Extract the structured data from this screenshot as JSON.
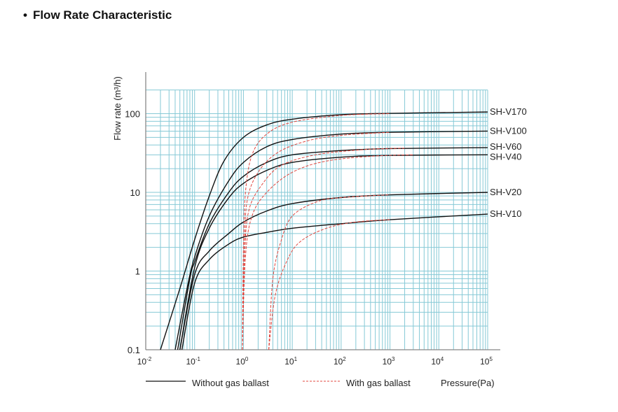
{
  "header": {
    "bullet": "•",
    "title": "Flow Rate Characteristic"
  },
  "chart_data": {
    "type": "line",
    "title": "Flow Rate Characteristic",
    "xlabel": "Pressure(Pa)",
    "ylabel": "Flow rate (m³/h)",
    "xscale": "log",
    "yscale": "log",
    "xlim": [
      0.01,
      100000
    ],
    "ylim": [
      0.1,
      200
    ],
    "x_ticks": [
      {
        "base": "10",
        "exp": "-2",
        "v": 0.01
      },
      {
        "base": "10",
        "exp": "-1",
        "v": 0.1
      },
      {
        "base": "10",
        "exp": "0",
        "v": 1
      },
      {
        "base": "10",
        "exp": "1",
        "v": 10
      },
      {
        "base": "10",
        "exp": "2",
        "v": 100
      },
      {
        "base": "10",
        "exp": "3",
        "v": 1000
      },
      {
        "base": "10",
        "exp": "4",
        "v": 10000
      },
      {
        "base": "10",
        "exp": "5",
        "v": 100000
      }
    ],
    "y_ticks": [
      {
        "label": "0.1",
        "v": 0.1
      },
      {
        "label": "1",
        "v": 1
      },
      {
        "label": "10",
        "v": 10
      },
      {
        "label": "100",
        "v": 100
      }
    ],
    "grid": true,
    "colors": {
      "grid": "#86c9d6",
      "without": "#111111",
      "with": "#e0473f",
      "axis": "#888888"
    },
    "legend": {
      "placement": "bottom",
      "without": "Without gas ballast",
      "with": "With gas ballast"
    },
    "series": [
      {
        "name": "SH-V170",
        "ballast": false,
        "points": [
          [
            0.02,
            0.1
          ],
          [
            0.05,
            0.6
          ],
          [
            0.1,
            2.5
          ],
          [
            0.2,
            9
          ],
          [
            0.4,
            25
          ],
          [
            1,
            50
          ],
          [
            3,
            72
          ],
          [
            10,
            85
          ],
          [
            100,
            97
          ],
          [
            1000,
            101
          ],
          [
            100000,
            105
          ]
        ]
      },
      {
        "name": "SH-V100",
        "ballast": false,
        "points": [
          [
            0.04,
            0.1
          ],
          [
            0.07,
            0.6
          ],
          [
            0.1,
            1.5
          ],
          [
            0.2,
            5
          ],
          [
            0.5,
            14
          ],
          [
            1,
            24
          ],
          [
            3,
            38
          ],
          [
            10,
            47
          ],
          [
            100,
            55
          ],
          [
            1000,
            58
          ],
          [
            100000,
            60
          ]
        ]
      },
      {
        "name": "SH-V60",
        "ballast": false,
        "points": [
          [
            0.045,
            0.1
          ],
          [
            0.08,
            0.8
          ],
          [
            0.1,
            1.3
          ],
          [
            0.2,
            4
          ],
          [
            0.5,
            10
          ],
          [
            1,
            16
          ],
          [
            3,
            24
          ],
          [
            10,
            30
          ],
          [
            100,
            34
          ],
          [
            1000,
            36
          ],
          [
            100000,
            37
          ]
        ]
      },
      {
        "name": "SH-V40",
        "ballast": false,
        "points": [
          [
            0.05,
            0.1
          ],
          [
            0.1,
            1.1
          ],
          [
            0.2,
            3.5
          ],
          [
            0.5,
            8.5
          ],
          [
            1,
            13
          ],
          [
            3,
            19
          ],
          [
            10,
            24
          ],
          [
            100,
            28
          ],
          [
            1000,
            29.5
          ],
          [
            100000,
            30
          ]
        ]
      },
      {
        "name": "SH-V20",
        "ballast": false,
        "points": [
          [
            0.05,
            0.1
          ],
          [
            0.1,
            0.9
          ],
          [
            0.2,
            1.8
          ],
          [
            0.5,
            3
          ],
          [
            1,
            4.2
          ],
          [
            3,
            5.8
          ],
          [
            10,
            7.2
          ],
          [
            100,
            8.6
          ],
          [
            1000,
            9.3
          ],
          [
            100000,
            10
          ]
        ]
      },
      {
        "name": "SH-V10",
        "ballast": false,
        "points": [
          [
            0.055,
            0.1
          ],
          [
            0.1,
            0.7
          ],
          [
            0.2,
            1.4
          ],
          [
            0.5,
            2.2
          ],
          [
            1,
            2.7
          ],
          [
            3,
            3.1
          ],
          [
            10,
            3.5
          ],
          [
            100,
            4
          ],
          [
            1000,
            4.5
          ],
          [
            100000,
            5.3
          ]
        ]
      },
      {
        "name": "SH-V170",
        "ballast": true,
        "points": [
          [
            0.95,
            0.1
          ],
          [
            1.0,
            2
          ],
          [
            1.1,
            10
          ],
          [
            1.5,
            30
          ],
          [
            3,
            55
          ],
          [
            10,
            78
          ],
          [
            100,
            95
          ],
          [
            1000,
            100
          ]
        ]
      },
      {
        "name": "SH-V100",
        "ballast": true,
        "points": [
          [
            0.95,
            0.1
          ],
          [
            1.05,
            2
          ],
          [
            1.2,
            8
          ],
          [
            2,
            18
          ],
          [
            5,
            32
          ],
          [
            20,
            45
          ],
          [
            100,
            53
          ],
          [
            1000,
            58
          ]
        ]
      },
      {
        "name": "SH-V60",
        "ballast": true,
        "points": [
          [
            0.95,
            0.1
          ],
          [
            1.05,
            1.5
          ],
          [
            1.3,
            6
          ],
          [
            2.5,
            13
          ],
          [
            6,
            22
          ],
          [
            30,
            30
          ],
          [
            300,
            35
          ],
          [
            2000,
            36.5
          ]
        ]
      },
      {
        "name": "SH-V40",
        "ballast": true,
        "points": [
          [
            0.95,
            0.1
          ],
          [
            1.1,
            1.5
          ],
          [
            1.5,
            5
          ],
          [
            3,
            10
          ],
          [
            10,
            18
          ],
          [
            50,
            25
          ],
          [
            500,
            29
          ],
          [
            3000,
            30
          ]
        ]
      },
      {
        "name": "SH-V20",
        "ballast": true,
        "points": [
          [
            3.3,
            0.1
          ],
          [
            4,
            0.8
          ],
          [
            6,
            2.5
          ],
          [
            10,
            5
          ],
          [
            30,
            7.5
          ],
          [
            100,
            8.6
          ],
          [
            1000,
            9.3
          ]
        ]
      },
      {
        "name": "SH-V10",
        "ballast": true,
        "points": [
          [
            3.3,
            0.1
          ],
          [
            4.5,
            0.5
          ],
          [
            8,
            1.4
          ],
          [
            15,
            2.4
          ],
          [
            50,
            3.5
          ],
          [
            200,
            4.2
          ],
          [
            1000,
            4.5
          ]
        ]
      }
    ],
    "end_labels": [
      "SH-V170",
      "SH-V100",
      "SH-V60",
      "SH-V40",
      "SH-V20",
      "SH-V10"
    ]
  }
}
